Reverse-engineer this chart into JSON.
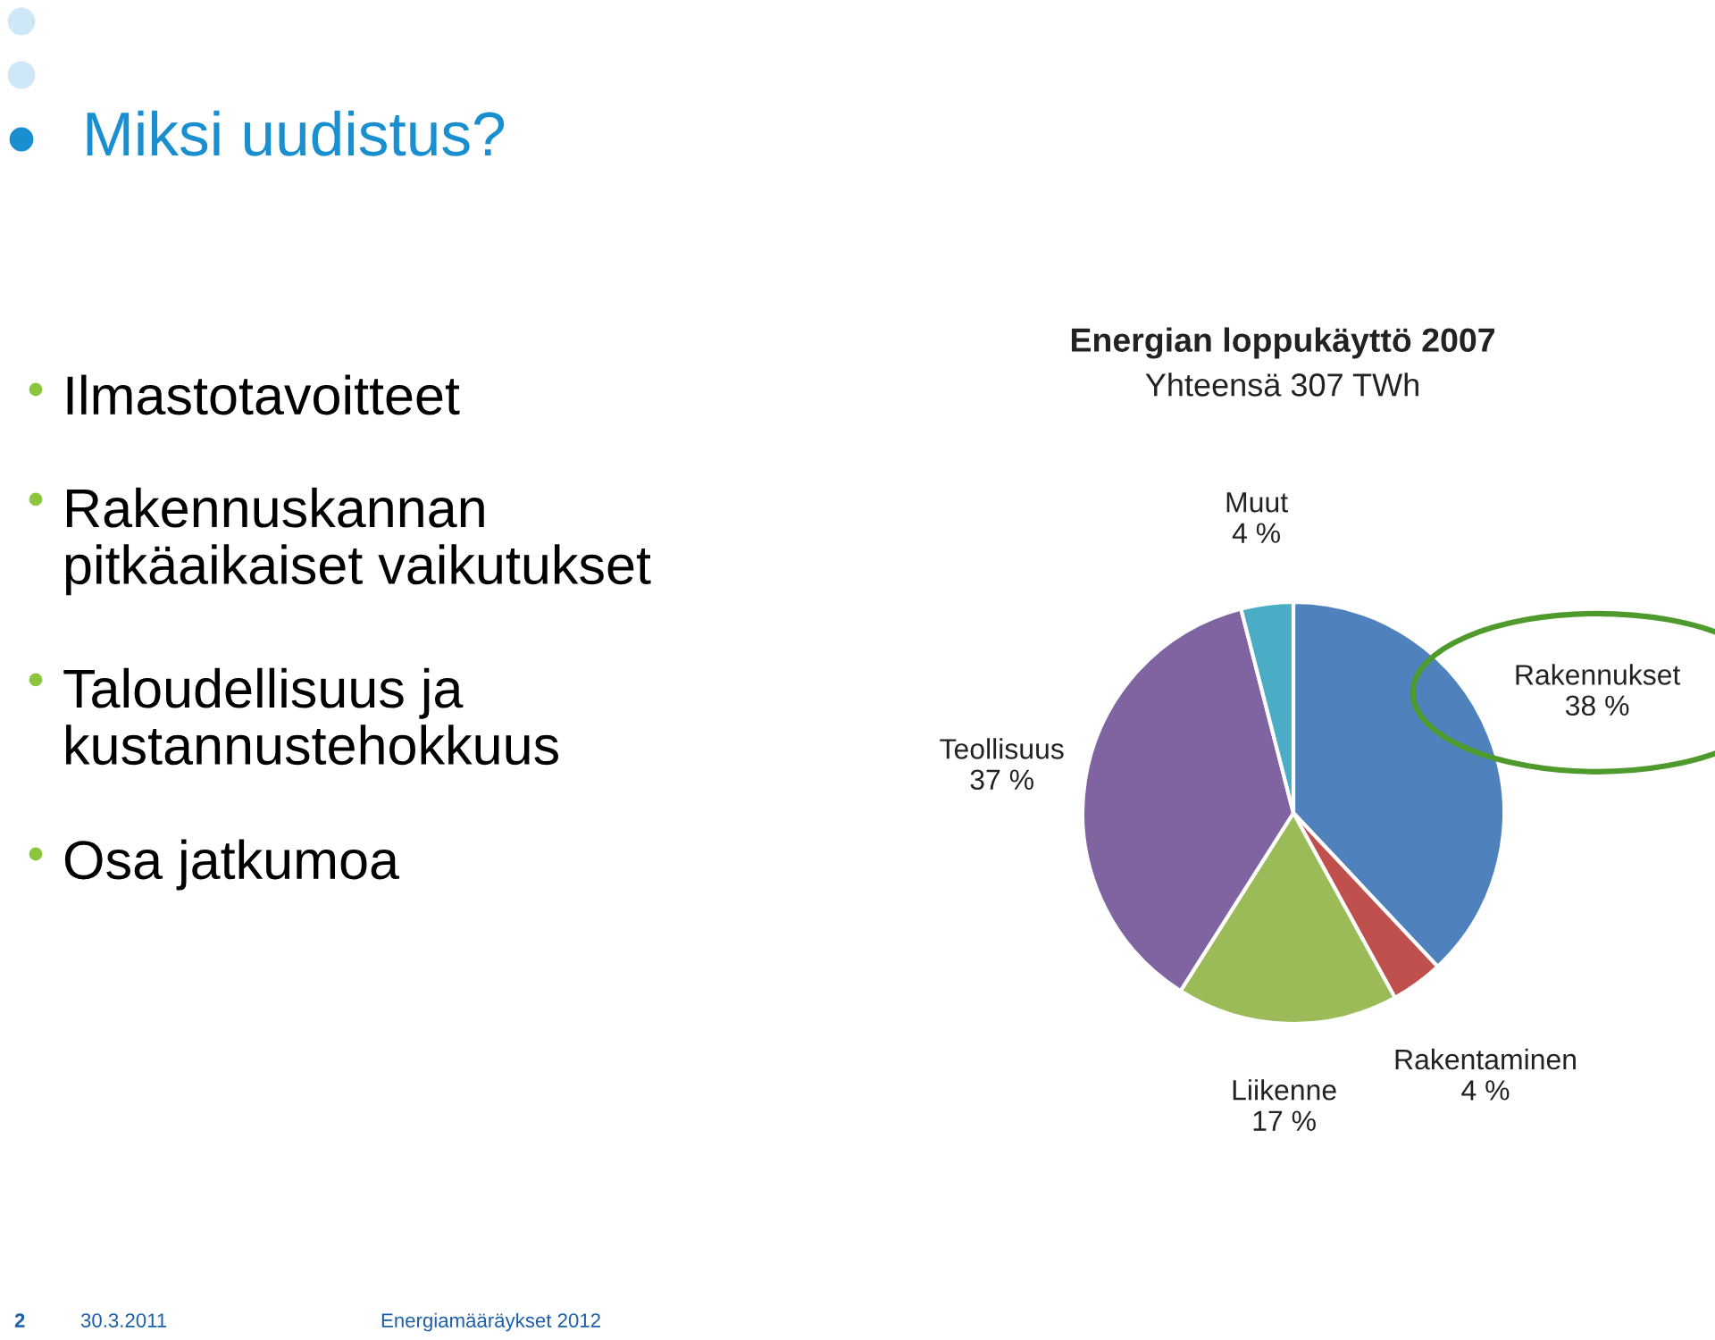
{
  "chart_data": {
    "type": "pie",
    "title": "Energian loppukäyttö 2007",
    "subtitle": "Yhteensä 307 TWh",
    "categories": [
      "Rakennukset",
      "Rakentaminen",
      "Liikenne",
      "Teollisuus",
      "Muut"
    ],
    "values": [
      38,
      4,
      17,
      37,
      4
    ],
    "colors": [
      "#4f81bd",
      "#c0504d",
      "#9bbb59",
      "#8064a2",
      "#4bacc6"
    ],
    "value_labels": [
      "38 %",
      "4 %",
      "17 %",
      "37 %",
      "4 %"
    ],
    "annotations": [
      "Miksi uudistus?",
      "Ilmastotavoitteet",
      "Rakennuskannan\npitkäaikaiset vaikutukset",
      "Taloudellisuus ja\nkustannustehokkuus",
      "Osa jatkumoa",
      "2",
      "30.3.2011",
      "Energiamääräykset 2012"
    ]
  }
}
